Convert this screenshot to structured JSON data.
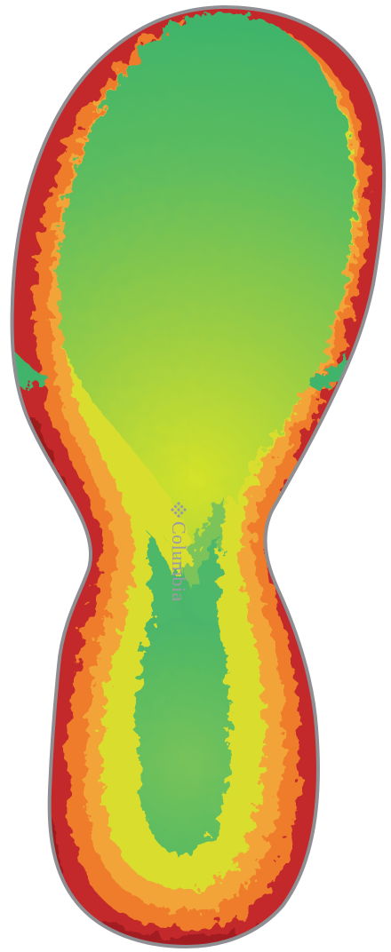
{
  "image": {
    "subject": "shoe-sole-pressure-heatmap",
    "background": "#ffffff",
    "outline_color": "#8f8f93",
    "palette": {
      "outer_red": "#cc2e2a",
      "dark_red": "#9e1c20",
      "orange": "#ef7a2c",
      "amber": "#f2a33a",
      "yellow": "#d4e03a",
      "green_light": "#8fcb55",
      "green": "#45b56a"
    }
  },
  "brand": {
    "name": "Columbia",
    "icon": "columbia-diamond-logo",
    "color": "#9a9ca1"
  }
}
